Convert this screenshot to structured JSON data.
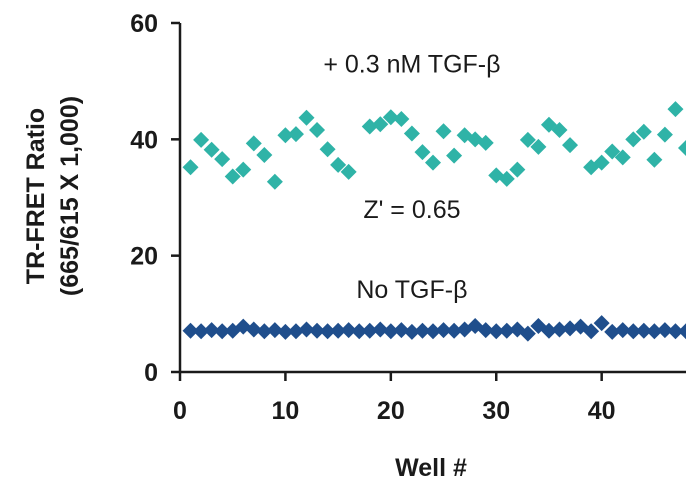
{
  "chart_data": {
    "type": "scatter",
    "xlabel": "Well #",
    "ylabel": [
      "TR-FRET Ratio",
      "(665/615 X 1,000)"
    ],
    "xlim": [
      0,
      48
    ],
    "ylim": [
      0,
      60
    ],
    "xticks": [
      "0",
      "10",
      "20",
      "30",
      "40"
    ],
    "xtick_values": [
      0,
      10,
      20,
      30,
      40
    ],
    "yticks": [
      "0",
      "20",
      "40",
      "60"
    ],
    "ytick_values": [
      0,
      20,
      40,
      60
    ],
    "grid": false,
    "annotations": [
      {
        "text": "+ 0.3 nM TGF-β",
        "x": 22,
        "y": 51.5
      },
      {
        "text": "Z' = 0.65",
        "x": 22,
        "y": 26.5
      },
      {
        "text": "No TGF-β",
        "x": 22,
        "y": 12.7
      }
    ],
    "series": [
      {
        "color": "#2fb3a7",
        "x": [
          1,
          2,
          3,
          4,
          5,
          6,
          7,
          8,
          9,
          10,
          11,
          12,
          13,
          14,
          15,
          16,
          18,
          19,
          20,
          21,
          22,
          23,
          24,
          25,
          26,
          27,
          28,
          29,
          30,
          31,
          32,
          33,
          34,
          35,
          36,
          37,
          39,
          40,
          41,
          42,
          43,
          44,
          45,
          46,
          47,
          48
        ],
        "y": [
          35.2,
          39.9,
          38.2,
          36.6,
          33.6,
          34.8,
          39.3,
          37.3,
          32.7,
          40.7,
          40.9,
          43.7,
          41.6,
          38.3,
          35.6,
          34.4,
          42.2,
          42.6,
          43.8,
          43.5,
          41.0,
          37.8,
          36.0,
          41.4,
          37.2,
          40.7,
          40.0,
          39.4,
          33.8,
          33.2,
          34.8,
          39.9,
          38.7,
          42.5,
          41.6,
          39.0,
          35.2,
          36.0,
          37.9,
          36.9,
          40.0,
          41.3,
          36.5,
          40.8,
          45.2,
          38.5
        ]
      },
      {
        "color": "#1f4e8c",
        "x": [
          1,
          2,
          3,
          4,
          5,
          6,
          7,
          8,
          9,
          10,
          11,
          12,
          13,
          14,
          15,
          16,
          17,
          18,
          19,
          20,
          21,
          22,
          23,
          24,
          25,
          26,
          27,
          28,
          29,
          30,
          31,
          32,
          33,
          34,
          35,
          36,
          37,
          38,
          39,
          40,
          41,
          42,
          43,
          44,
          45,
          46,
          47,
          48
        ],
        "y": [
          7.1,
          7.0,
          7.2,
          7.0,
          7.1,
          7.8,
          7.3,
          7.0,
          7.2,
          6.9,
          7.0,
          7.3,
          7.1,
          7.0,
          7.1,
          7.2,
          7.0,
          7.1,
          7.3,
          7.0,
          7.2,
          6.9,
          7.1,
          7.0,
          7.2,
          7.1,
          7.3,
          7.9,
          7.2,
          7.0,
          7.1,
          7.3,
          6.6,
          7.9,
          7.1,
          7.3,
          7.5,
          7.8,
          7.0,
          8.4,
          6.9,
          7.2,
          7.0,
          7.1,
          7.0,
          7.2,
          7.0,
          7.0
        ]
      }
    ]
  }
}
